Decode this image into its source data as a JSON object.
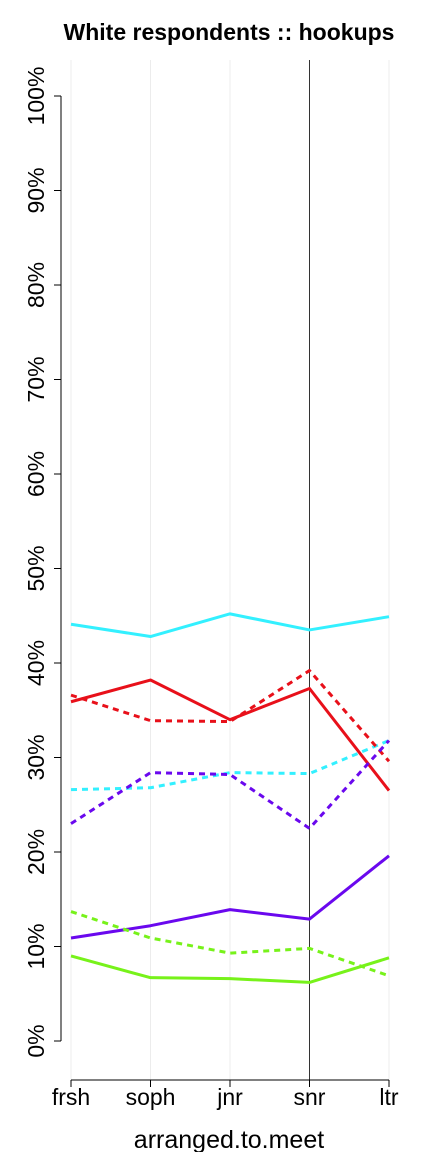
{
  "chart_data": {
    "type": "line",
    "title": "White respondents :: hookups",
    "xlabel": "arranged.to.meet",
    "ylabel": "",
    "categories": [
      "frsh",
      "soph",
      "jnr",
      "snr",
      "ltr"
    ],
    "ylim": [
      0,
      100
    ],
    "yticks": [
      0,
      10,
      20,
      30,
      40,
      50,
      60,
      70,
      80,
      90,
      100
    ],
    "ytick_labels": [
      "0%",
      "10%",
      "20%",
      "30%",
      "40%",
      "50%",
      "60%",
      "70%",
      "80%",
      "90%",
      "100%"
    ],
    "grid": "vertical",
    "reference_line_category": "snr",
    "series": [
      {
        "color": "#33f0ff",
        "dash": false,
        "values": [
          44.1,
          42.8,
          45.2,
          43.5,
          44.9
        ]
      },
      {
        "color": "#33f0ff",
        "dash": true,
        "values": [
          26.6,
          26.8,
          28.4,
          28.3,
          31.8
        ]
      },
      {
        "color": "#e8101a",
        "dash": false,
        "values": [
          35.9,
          38.2,
          34.0,
          37.3,
          26.5
        ]
      },
      {
        "color": "#e8101a",
        "dash": true,
        "values": [
          36.6,
          33.9,
          33.8,
          39.2,
          29.6
        ]
      },
      {
        "color": "#6a08ee",
        "dash": false,
        "values": [
          10.9,
          12.2,
          13.9,
          12.9,
          19.6
        ]
      },
      {
        "color": "#6a08ee",
        "dash": true,
        "values": [
          23.0,
          28.4,
          28.2,
          22.5,
          31.8
        ]
      },
      {
        "color": "#77f21a",
        "dash": false,
        "values": [
          9.0,
          6.7,
          6.6,
          6.2,
          8.8
        ]
      },
      {
        "color": "#77f21a",
        "dash": true,
        "values": [
          13.7,
          10.9,
          9.3,
          9.8,
          6.9
        ]
      }
    ]
  }
}
